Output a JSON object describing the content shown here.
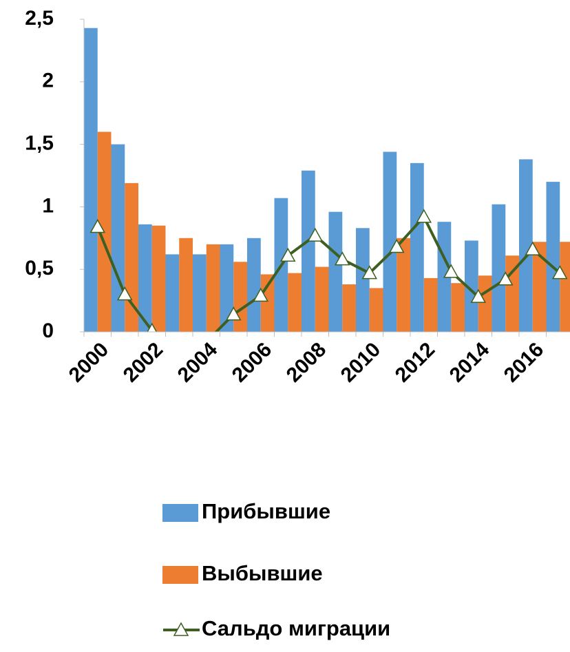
{
  "chart_data": {
    "type": "bar-line",
    "categories": [
      "2000",
      null,
      "2002",
      null,
      "2004",
      null,
      "2006",
      null,
      "2008",
      null,
      "2010",
      null,
      "2012",
      null,
      "2014",
      null,
      "2016",
      null
    ],
    "series": [
      {
        "name": "Прибывшие",
        "type": "bar",
        "color": "#5b9bd5",
        "values": [
          2.43,
          1.5,
          0.86,
          0.62,
          0.62,
          0.7,
          0.75,
          1.07,
          1.29,
          0.96,
          0.83,
          1.44,
          1.35,
          0.88,
          0.73,
          1.02,
          1.38,
          1.2
        ]
      },
      {
        "name": "Выбывшие",
        "type": "bar",
        "color": "#ed7d31",
        "values": [
          1.6,
          1.19,
          0.85,
          0.75,
          0.7,
          0.56,
          0.46,
          0.47,
          0.52,
          0.38,
          0.35,
          0.75,
          0.43,
          0.39,
          0.45,
          0.61,
          0.72,
          0.72
        ]
      },
      {
        "name": "Сальдо миграции",
        "type": "line",
        "color": "#3e5f22",
        "values": [
          0.84,
          0.3,
          0.01,
          -0.13,
          -0.08,
          0.14,
          0.29,
          0.61,
          0.77,
          0.58,
          0.47,
          0.68,
          0.92,
          0.48,
          0.28,
          0.42,
          0.66,
          0.47
        ]
      }
    ],
    "ylim": [
      0,
      2.5
    ],
    "yticks": [
      0,
      {
        "value": 0.5,
        "label": "0,5"
      },
      1,
      {
        "value": 1.5,
        "label": "1,5"
      },
      2,
      {
        "value": 2.5,
        "label": "2,5"
      }
    ],
    "grid": false,
    "legend": "bottom"
  }
}
